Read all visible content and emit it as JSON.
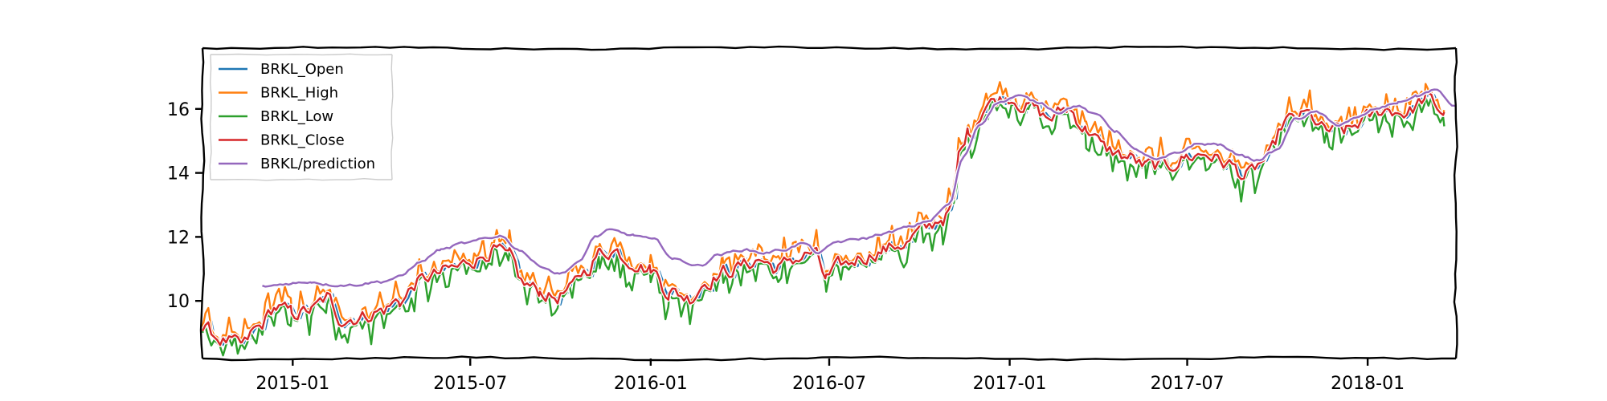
{
  "chart_data": {
    "type": "line",
    "title": "",
    "xlabel": "",
    "ylabel": "",
    "x_range": [
      "2014-10-01",
      "2018-04-01"
    ],
    "ylim": [
      8.2,
      17.9
    ],
    "grid": false,
    "legend_placement": "top-left",
    "x_ticks": [
      "2015-01",
      "2015-07",
      "2016-01",
      "2016-07",
      "2017-01",
      "2017-07",
      "2018-01"
    ],
    "y_ticks": [
      10,
      12,
      14,
      16
    ],
    "series": [
      {
        "name": "BRKL_Open",
        "color": "#1f77b4"
      },
      {
        "name": "BRKL_High",
        "color": "#ff7f0e"
      },
      {
        "name": "BRKL_Low",
        "color": "#2ca02c"
      },
      {
        "name": "BRKL_Close",
        "color": "#d62728"
      },
      {
        "name": "BRKL/prediction",
        "color": "#9467bd"
      }
    ],
    "close_points": [
      [
        "2014-10-01",
        9.1
      ],
      [
        "2014-10-25",
        8.75
      ],
      [
        "2014-11-10",
        8.55
      ],
      [
        "2014-11-25",
        9.1
      ],
      [
        "2014-12-15",
        9.8
      ],
      [
        "2014-12-31",
        9.6
      ],
      [
        "2015-01-20",
        9.7
      ],
      [
        "2015-02-05",
        10.05
      ],
      [
        "2015-02-20",
        9.45
      ],
      [
        "2015-03-10",
        9.5
      ],
      [
        "2015-04-01",
        9.7
      ],
      [
        "2015-04-20",
        10.0
      ],
      [
        "2015-05-10",
        10.6
      ],
      [
        "2015-05-25",
        10.8
      ],
      [
        "2015-06-15",
        11.0
      ],
      [
        "2015-07-05",
        11.3
      ],
      [
        "2015-07-25",
        11.6
      ],
      [
        "2015-08-10",
        11.3
      ],
      [
        "2015-08-25",
        10.5
      ],
      [
        "2015-09-10",
        10.3
      ],
      [
        "2015-09-25",
        10.1
      ],
      [
        "2015-10-10",
        10.3
      ],
      [
        "2015-10-25",
        10.9
      ],
      [
        "2015-11-10",
        11.5
      ],
      [
        "2015-11-25",
        11.6
      ],
      [
        "2015-12-10",
        11.3
      ],
      [
        "2016-01-01",
        11.0
      ],
      [
        "2016-01-20",
        10.3
      ],
      [
        "2016-02-10",
        10.1
      ],
      [
        "2016-02-25",
        10.6
      ],
      [
        "2016-03-15",
        10.9
      ],
      [
        "2016-04-05",
        11.1
      ],
      [
        "2016-04-20",
        11.3
      ],
      [
        "2016-05-10",
        11.0
      ],
      [
        "2016-05-25",
        11.3
      ],
      [
        "2016-06-15",
        11.5
      ],
      [
        "2016-06-28",
        10.7
      ],
      [
        "2016-07-15",
        11.1
      ],
      [
        "2016-08-05",
        11.4
      ],
      [
        "2016-08-25",
        11.6
      ],
      [
        "2016-09-15",
        11.8
      ],
      [
        "2016-10-05",
        12.2
      ],
      [
        "2016-10-25",
        12.6
      ],
      [
        "2016-11-05",
        13.0
      ],
      [
        "2016-11-10",
        14.5
      ],
      [
        "2016-11-20",
        15.3
      ],
      [
        "2016-12-10",
        16.2
      ],
      [
        "2016-12-31",
        16.4
      ],
      [
        "2017-01-20",
        16.1
      ],
      [
        "2017-02-10",
        15.7
      ],
      [
        "2017-03-01",
        16.0
      ],
      [
        "2017-03-20",
        15.4
      ],
      [
        "2017-04-10",
        14.7
      ],
      [
        "2017-05-01",
        14.5
      ],
      [
        "2017-05-20",
        14.2
      ],
      [
        "2017-06-10",
        14.2
      ],
      [
        "2017-06-30",
        14.5
      ],
      [
        "2017-07-20",
        14.6
      ],
      [
        "2017-08-10",
        14.3
      ],
      [
        "2017-08-30",
        13.9
      ],
      [
        "2017-09-20",
        14.4
      ],
      [
        "2017-10-10",
        15.6
      ],
      [
        "2017-10-31",
        15.8
      ],
      [
        "2017-11-20",
        15.3
      ],
      [
        "2017-12-10",
        15.3
      ],
      [
        "2017-12-31",
        15.7
      ],
      [
        "2018-01-20",
        16.0
      ],
      [
        "2018-02-10",
        15.9
      ],
      [
        "2018-03-01",
        16.3
      ],
      [
        "2018-03-20",
        15.9
      ]
    ],
    "prediction_points": [
      [
        "2014-12-01",
        10.45
      ],
      [
        "2015-01-01",
        10.55
      ],
      [
        "2015-01-20",
        10.6
      ],
      [
        "2015-02-10",
        10.5
      ],
      [
        "2015-03-01",
        10.5
      ],
      [
        "2015-04-01",
        10.6
      ],
      [
        "2015-04-20",
        10.75
      ],
      [
        "2015-05-10",
        11.2
      ],
      [
        "2015-06-01",
        11.6
      ],
      [
        "2015-06-25",
        11.8
      ],
      [
        "2015-07-20",
        11.95
      ],
      [
        "2015-07-31",
        12.05
      ],
      [
        "2015-08-20",
        11.6
      ],
      [
        "2015-09-10",
        11.1
      ],
      [
        "2015-09-30",
        10.85
      ],
      [
        "2015-10-20",
        11.2
      ],
      [
        "2015-11-05",
        12.0
      ],
      [
        "2015-11-20",
        12.2
      ],
      [
        "2015-12-15",
        12.05
      ],
      [
        "2016-01-05",
        11.9
      ],
      [
        "2016-01-25",
        11.3
      ],
      [
        "2016-02-20",
        11.1
      ],
      [
        "2016-03-10",
        11.45
      ],
      [
        "2016-04-05",
        11.6
      ],
      [
        "2016-04-25",
        11.5
      ],
      [
        "2016-05-15",
        11.6
      ],
      [
        "2016-06-05",
        11.8
      ],
      [
        "2016-06-20",
        11.5
      ],
      [
        "2016-07-10",
        11.85
      ],
      [
        "2016-08-05",
        11.95
      ],
      [
        "2016-08-25",
        12.1
      ],
      [
        "2016-09-20",
        12.3
      ],
      [
        "2016-10-10",
        12.5
      ],
      [
        "2016-10-31",
        13.0
      ],
      [
        "2016-11-15",
        14.5
      ],
      [
        "2016-12-01",
        15.5
      ],
      [
        "2016-12-20",
        16.2
      ],
      [
        "2017-01-10",
        16.4
      ],
      [
        "2017-01-31",
        16.2
      ],
      [
        "2017-02-20",
        15.9
      ],
      [
        "2017-03-10",
        16.1
      ],
      [
        "2017-03-31",
        15.8
      ],
      [
        "2017-04-20",
        15.3
      ],
      [
        "2017-05-10",
        14.7
      ],
      [
        "2017-05-31",
        14.4
      ],
      [
        "2017-06-20",
        14.6
      ],
      [
        "2017-07-10",
        14.9
      ],
      [
        "2017-08-01",
        14.9
      ],
      [
        "2017-08-20",
        14.6
      ],
      [
        "2017-09-10",
        14.4
      ],
      [
        "2017-09-30",
        14.7
      ],
      [
        "2017-10-20",
        15.7
      ],
      [
        "2017-11-10",
        15.9
      ],
      [
        "2017-11-30",
        15.5
      ],
      [
        "2017-12-20",
        15.7
      ],
      [
        "2018-01-10",
        16.0
      ],
      [
        "2018-02-01",
        16.2
      ],
      [
        "2018-02-20",
        16.4
      ],
      [
        "2018-03-10",
        16.6
      ],
      [
        "2018-03-31",
        16.1
      ]
    ]
  }
}
